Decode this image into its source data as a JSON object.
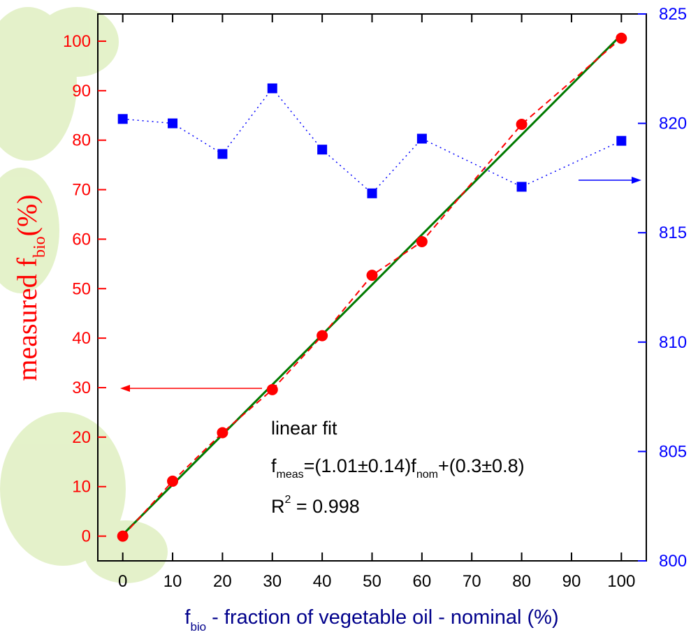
{
  "chart_data": {
    "type": "scatter",
    "xlabel": [
      "f",
      "bio",
      " - fraction of vegetable oil - nominal (%)"
    ],
    "ylabel": [
      "measured f",
      "bio",
      "(%)"
    ],
    "annotations": {
      "fit_title": "linear fit",
      "formula": [
        "f",
        "meas",
        "=(1.01±0.14)f",
        "nom",
        "+(0.3±0.8)"
      ],
      "r2": [
        "R",
        "2",
        " = 0.998"
      ]
    },
    "x": [
      0,
      10,
      20,
      30,
      40,
      50,
      60,
      80,
      100
    ],
    "series": [
      {
        "color": "#ff0000",
        "values": [
          0,
          11.1,
          20.9,
          29.6,
          40.5,
          52.7,
          59.5,
          83.2,
          100.6
        ]
      },
      {
        "color": "#0000ff",
        "axis": "y2",
        "values": [
          820.2,
          820.0,
          818.6,
          821.6,
          818.8,
          816.8,
          819.3,
          817.1,
          819.2
        ]
      }
    ],
    "fit": {
      "color": "#007a00",
      "x": [
        0,
        100
      ],
      "values": [
        0.3,
        101.3
      ]
    },
    "xlim": [
      -5,
      105
    ],
    "xticks": [
      0,
      10,
      20,
      30,
      40,
      50,
      60,
      70,
      80,
      90,
      100
    ],
    "ylim": [
      -5,
      105.5
    ],
    "yticks": [
      0,
      10,
      20,
      30,
      40,
      50,
      60,
      70,
      80,
      90,
      100
    ],
    "y2lim": [
      800,
      825
    ],
    "y2ticks": [
      800,
      805,
      810,
      815,
      820,
      825
    ]
  }
}
